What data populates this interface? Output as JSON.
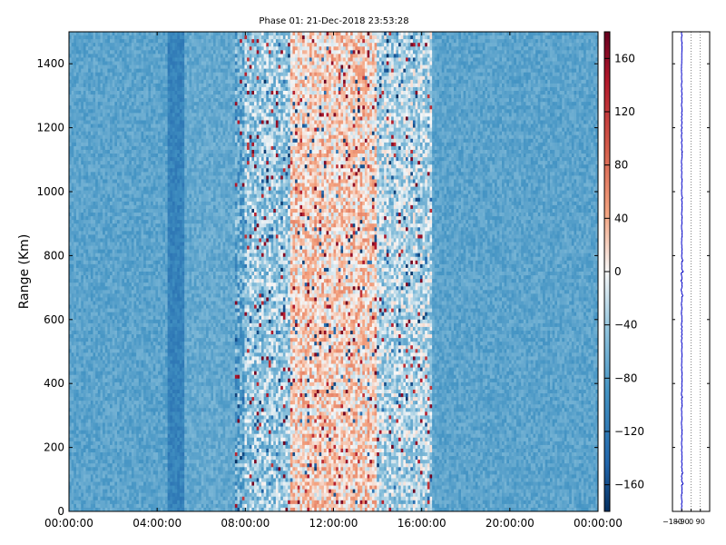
{
  "chart_data": [
    {
      "type": "heatmap",
      "title": "Phase 01: 21-Dec-2018 23:53:28",
      "xlabel": "",
      "ylabel": "Range (Km)",
      "xlim": [
        "00:00:00",
        "24:00:00"
      ],
      "ylim": [
        0,
        1500
      ],
      "x_ticks": [
        "00:00:00",
        "04:00:00",
        "08:00:00",
        "12:00:00",
        "16:00:00",
        "20:00:00",
        "00:00:00"
      ],
      "y_ticks": [
        "0",
        "200",
        "400",
        "600",
        "800",
        "1000",
        "1200",
        "1400"
      ],
      "colorbar": {
        "colormap": "RdBu_r",
        "range": [
          -180,
          180
        ],
        "ticks": [
          "−160",
          "−120",
          "−80",
          "−40",
          "0",
          "40",
          "80",
          "120",
          "160"
        ],
        "tick_values": [
          -160,
          -120,
          -80,
          -40,
          0,
          40,
          80,
          120,
          160
        ]
      },
      "grid": false,
      "description_of_pattern": [
        {
          "time_start_h": 0,
          "time_end_h": 4.5,
          "mean_phase_deg": -75
        },
        {
          "time_start_h": 4.5,
          "time_end_h": 5.2,
          "mean_phase_deg": -110
        },
        {
          "time_start_h": 5.2,
          "time_end_h": 8,
          "mean_phase_deg": -70
        },
        {
          "time_start_h": 8,
          "time_end_h": 10,
          "mean_phase_deg": -40
        },
        {
          "time_start_h": 10,
          "time_end_h": 14,
          "mean_phase_deg": 20
        },
        {
          "time_start_h": 14,
          "time_end_h": 16.5,
          "mean_phase_deg": -30
        },
        {
          "time_start_h": 16.5,
          "time_end_h": 24,
          "mean_phase_deg": -75
        }
      ]
    },
    {
      "type": "line",
      "title": "",
      "xlabel": "",
      "ylabel": "",
      "xlim": [
        -180,
        180
      ],
      "ylim": [
        0,
        1500
      ],
      "x_ticks": [
        "−180",
        "−90",
        "0",
        "90"
      ],
      "x_tick_values": [
        -180,
        -90,
        0,
        90
      ],
      "grid": "vertical dotted",
      "series_color": "#0000cc",
      "approx_mean_phase_deg": -90
    }
  ]
}
